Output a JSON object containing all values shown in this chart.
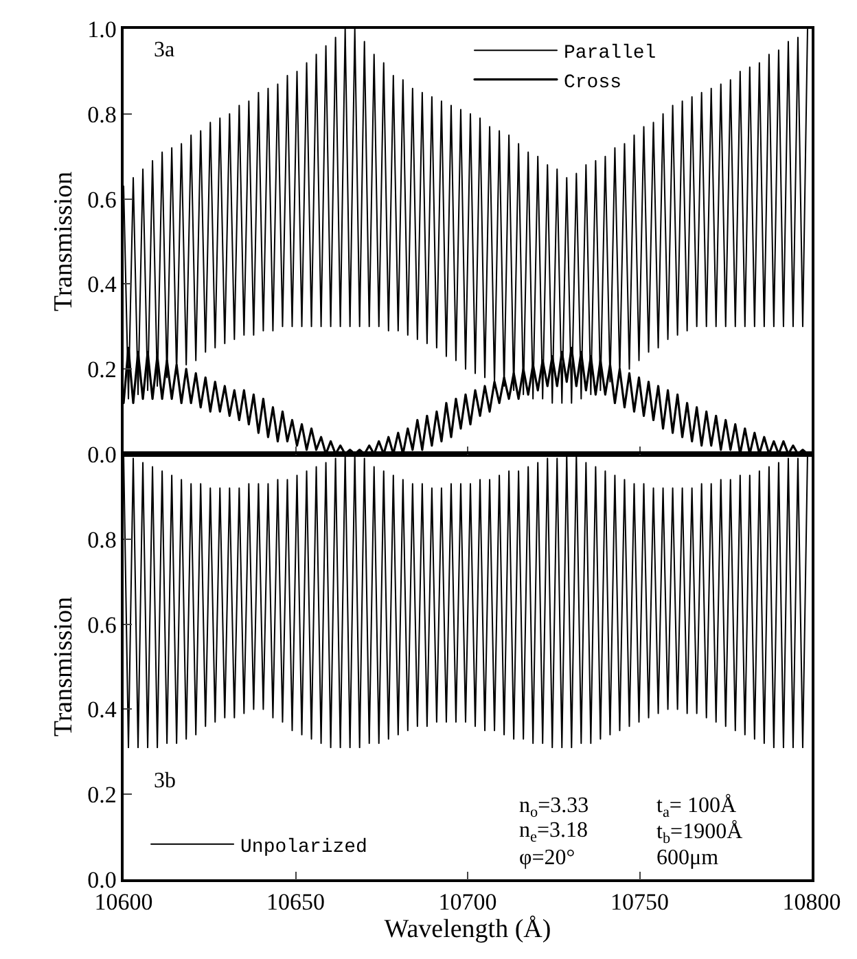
{
  "chart_data": [
    {
      "type": "line",
      "ylabel": "Transmission",
      "tick_labels": "y",
      "legend": "top right",
      "grid": false,
      "xlim": [
        10600,
        10800
      ],
      "ylim": [
        0,
        1
      ],
      "yticks": [
        {
          "value": 0,
          "label": "0.0"
        },
        {
          "value": 0.2,
          "label": "0.2"
        },
        {
          "value": 0.4,
          "label": "0.4"
        },
        {
          "value": 0.6,
          "label": "0.6"
        },
        {
          "value": 0.8,
          "label": "0.8"
        },
        {
          "value": 1,
          "label": "1.0"
        }
      ],
      "annotations": [
        "3a"
      ],
      "x": [
        10600.0,
        10601.4,
        10602.8,
        10604.2,
        10605.6,
        10607.0,
        10608.4,
        10609.8,
        10611.2,
        10612.6,
        10614.0,
        10615.4,
        10616.8,
        10618.2,
        10619.6,
        10621.0,
        10622.4,
        10623.8,
        10625.2,
        10626.6,
        10628.0,
        10629.4,
        10630.8,
        10632.2,
        10633.6,
        10635.0,
        10636.4,
        10637.8,
        10639.2,
        10640.6,
        10642.0,
        10643.4,
        10644.8,
        10646.2,
        10647.6,
        10649.0,
        10650.4,
        10651.8,
        10653.2,
        10654.6,
        10656.0,
        10657.4,
        10658.8,
        10660.2,
        10661.6,
        10663.0,
        10664.4,
        10665.8,
        10667.2,
        10668.6,
        10670.0,
        10671.4,
        10672.8,
        10674.2,
        10675.6,
        10677.0,
        10678.4,
        10679.8,
        10681.2,
        10682.6,
        10684.0,
        10685.4,
        10686.8,
        10688.2,
        10689.6,
        10691.0,
        10692.4,
        10693.8,
        10695.2,
        10696.6,
        10698.0,
        10699.4,
        10700.8,
        10702.2,
        10703.6,
        10705.0,
        10706.4,
        10707.8,
        10709.2,
        10710.6,
        10712.0,
        10713.4,
        10714.8,
        10716.2,
        10717.6,
        10719.0,
        10720.4,
        10721.8,
        10723.2,
        10724.6,
        10726.0,
        10727.4,
        10728.8,
        10730.2,
        10731.6,
        10733.0,
        10734.4,
        10735.8,
        10737.2,
        10738.6,
        10740.0,
        10741.4,
        10742.8,
        10744.2,
        10745.6,
        10747.0,
        10748.4,
        10749.8,
        10751.2,
        10752.6,
        10754.0,
        10755.4,
        10756.8,
        10758.2,
        10759.6,
        10761.0,
        10762.4,
        10763.8,
        10765.2,
        10766.6,
        10768.0,
        10769.4,
        10770.8,
        10772.2,
        10773.6,
        10775.0,
        10776.4,
        10777.8,
        10779.2,
        10780.6,
        10782.0,
        10783.4,
        10784.8,
        10786.2,
        10787.6,
        10789.0,
        10790.4,
        10791.8,
        10793.2,
        10794.6,
        10796.0,
        10797.4,
        10798.8
      ],
      "series": [
        {
          "name": "Parallel",
          "color": "#000000",
          "values": [
            0.63,
            0.13,
            0.65,
            0.14,
            0.67,
            0.15,
            0.69,
            0.16,
            0.71,
            0.18,
            0.72,
            0.19,
            0.73,
            0.21,
            0.75,
            0.22,
            0.76,
            0.24,
            0.78,
            0.25,
            0.79,
            0.26,
            0.8,
            0.27,
            0.82,
            0.28,
            0.83,
            0.28,
            0.85,
            0.29,
            0.86,
            0.29,
            0.87,
            0.3,
            0.89,
            0.3,
            0.9,
            0.3,
            0.92,
            0.3,
            0.94,
            0.3,
            0.96,
            0.3,
            0.98,
            0.3,
            1.0,
            0.3,
            1.0,
            0.3,
            0.97,
            0.3,
            0.94,
            0.3,
            0.92,
            0.29,
            0.89,
            0.29,
            0.88,
            0.28,
            0.86,
            0.27,
            0.85,
            0.26,
            0.84,
            0.25,
            0.83,
            0.23,
            0.82,
            0.22,
            0.81,
            0.2,
            0.8,
            0.19,
            0.79,
            0.18,
            0.77,
            0.17,
            0.76,
            0.16,
            0.75,
            0.15,
            0.73,
            0.14,
            0.71,
            0.13,
            0.7,
            0.13,
            0.68,
            0.12,
            0.67,
            0.12,
            0.65,
            0.12,
            0.66,
            0.13,
            0.68,
            0.14,
            0.69,
            0.15,
            0.7,
            0.17,
            0.72,
            0.19,
            0.73,
            0.2,
            0.75,
            0.22,
            0.77,
            0.24,
            0.78,
            0.25,
            0.8,
            0.27,
            0.82,
            0.28,
            0.83,
            0.29,
            0.84,
            0.3,
            0.85,
            0.3,
            0.86,
            0.3,
            0.87,
            0.3,
            0.88,
            0.3,
            0.9,
            0.3,
            0.91,
            0.3,
            0.92,
            0.3,
            0.94,
            0.3,
            0.95,
            0.3,
            0.97,
            0.3,
            0.98,
            0.3,
            1.0
          ]
        },
        {
          "name": "Cross",
          "color": "#000000",
          "values": [
            0.12,
            0.25,
            0.12,
            0.24,
            0.13,
            0.24,
            0.13,
            0.23,
            0.13,
            0.22,
            0.13,
            0.21,
            0.12,
            0.2,
            0.12,
            0.19,
            0.11,
            0.18,
            0.1,
            0.17,
            0.1,
            0.16,
            0.09,
            0.15,
            0.08,
            0.15,
            0.07,
            0.14,
            0.05,
            0.13,
            0.04,
            0.11,
            0.03,
            0.1,
            0.03,
            0.08,
            0.02,
            0.07,
            0.01,
            0.06,
            0.01,
            0.04,
            0.0,
            0.03,
            0.0,
            0.02,
            0.0,
            0.01,
            0.0,
            0.01,
            0.0,
            0.02,
            0.0,
            0.03,
            0.0,
            0.04,
            0.0,
            0.05,
            0.0,
            0.06,
            0.01,
            0.08,
            0.01,
            0.09,
            0.02,
            0.1,
            0.03,
            0.12,
            0.04,
            0.13,
            0.06,
            0.14,
            0.07,
            0.15,
            0.09,
            0.16,
            0.1,
            0.17,
            0.12,
            0.18,
            0.13,
            0.19,
            0.13,
            0.2,
            0.14,
            0.21,
            0.15,
            0.22,
            0.16,
            0.23,
            0.16,
            0.24,
            0.17,
            0.25,
            0.16,
            0.24,
            0.15,
            0.23,
            0.14,
            0.22,
            0.14,
            0.21,
            0.12,
            0.2,
            0.11,
            0.19,
            0.1,
            0.18,
            0.09,
            0.17,
            0.08,
            0.16,
            0.06,
            0.15,
            0.05,
            0.14,
            0.04,
            0.12,
            0.03,
            0.11,
            0.02,
            0.1,
            0.02,
            0.09,
            0.01,
            0.08,
            0.01,
            0.07,
            0.0,
            0.06,
            0.0,
            0.05,
            0.0,
            0.04,
            0.0,
            0.03,
            0.0,
            0.03,
            0.0,
            0.02,
            0.0,
            0.01,
            0.0
          ]
        }
      ]
    },
    {
      "type": "line",
      "ylabel": "Transmission",
      "xlabel": "Wavelength (Å)",
      "legend": "bottom left",
      "grid": false,
      "xlim": [
        10600,
        10800
      ],
      "ylim": [
        0,
        1
      ],
      "xticks": [
        10600,
        10650,
        10700,
        10750,
        10800
      ],
      "yticks": [
        {
          "value": 0,
          "label": "0.0"
        },
        {
          "value": 0.2,
          "label": "0.2"
        },
        {
          "value": 0.4,
          "label": "0.4"
        },
        {
          "value": 0.6,
          "label": "0.6"
        },
        {
          "value": 0.8,
          "label": "0.8"
        }
      ],
      "annotations": [
        "3b",
        "n$_{o}$=3.33",
        "n$_{e}$=3.18",
        "φ=20°",
        "t$_{a}$= 100Å",
        "t$_{b}$=1900Å",
        "600μm"
      ],
      "x": [
        10600.0,
        10601.4,
        10602.8,
        10604.2,
        10605.6,
        10607.0,
        10608.4,
        10609.8,
        10611.2,
        10612.6,
        10614.0,
        10615.4,
        10616.8,
        10618.2,
        10619.6,
        10621.0,
        10622.4,
        10623.8,
        10625.2,
        10626.6,
        10628.0,
        10629.4,
        10630.8,
        10632.2,
        10633.6,
        10635.0,
        10636.4,
        10637.8,
        10639.2,
        10640.6,
        10642.0,
        10643.4,
        10644.8,
        10646.2,
        10647.6,
        10649.0,
        10650.4,
        10651.8,
        10653.2,
        10654.6,
        10656.0,
        10657.4,
        10658.8,
        10660.2,
        10661.6,
        10663.0,
        10664.4,
        10665.8,
        10667.2,
        10668.6,
        10670.0,
        10671.4,
        10672.8,
        10674.2,
        10675.6,
        10677.0,
        10678.4,
        10679.8,
        10681.2,
        10682.6,
        10684.0,
        10685.4,
        10686.8,
        10688.2,
        10689.6,
        10691.0,
        10692.4,
        10693.8,
        10695.2,
        10696.6,
        10698.0,
        10699.4,
        10700.8,
        10702.2,
        10703.6,
        10705.0,
        10706.4,
        10707.8,
        10709.2,
        10710.6,
        10712.0,
        10713.4,
        10714.8,
        10716.2,
        10717.6,
        10719.0,
        10720.4,
        10721.8,
        10723.2,
        10724.6,
        10726.0,
        10727.4,
        10728.8,
        10730.2,
        10731.6,
        10733.0,
        10734.4,
        10735.8,
        10737.2,
        10738.6,
        10740.0,
        10741.4,
        10742.8,
        10744.2,
        10745.6,
        10747.0,
        10748.4,
        10749.8,
        10751.2,
        10752.6,
        10754.0,
        10755.4,
        10756.8,
        10758.2,
        10759.6,
        10761.0,
        10762.4,
        10763.8,
        10765.2,
        10766.6,
        10768.0,
        10769.4,
        10770.8,
        10772.2,
        10773.6,
        10775.0,
        10776.4,
        10777.8,
        10779.2,
        10780.6,
        10782.0,
        10783.4,
        10784.8,
        10786.2,
        10787.6,
        10789.0,
        10790.4,
        10791.8,
        10793.2,
        10794.6,
        10796.0,
        10797.4,
        10798.8
      ],
      "series": [
        {
          "name": "Unpolarized",
          "color": "#000000",
          "values": [
            1.0,
            0.31,
            0.99,
            0.31,
            0.98,
            0.31,
            0.97,
            0.31,
            0.96,
            0.32,
            0.95,
            0.32,
            0.94,
            0.33,
            0.93,
            0.34,
            0.93,
            0.36,
            0.92,
            0.37,
            0.92,
            0.38,
            0.92,
            0.38,
            0.92,
            0.39,
            0.93,
            0.4,
            0.93,
            0.4,
            0.93,
            0.38,
            0.94,
            0.37,
            0.94,
            0.35,
            0.95,
            0.34,
            0.96,
            0.33,
            0.97,
            0.32,
            0.98,
            0.31,
            0.99,
            0.31,
            1.0,
            0.31,
            1.0,
            0.31,
            0.99,
            0.32,
            0.97,
            0.32,
            0.96,
            0.33,
            0.95,
            0.34,
            0.94,
            0.35,
            0.93,
            0.36,
            0.93,
            0.36,
            0.92,
            0.37,
            0.92,
            0.37,
            0.93,
            0.37,
            0.93,
            0.37,
            0.93,
            0.36,
            0.94,
            0.35,
            0.94,
            0.35,
            0.95,
            0.34,
            0.96,
            0.33,
            0.96,
            0.33,
            0.97,
            0.32,
            0.98,
            0.32,
            0.99,
            0.31,
            0.99,
            0.31,
            1.0,
            0.31,
            1.0,
            0.32,
            0.98,
            0.32,
            0.97,
            0.33,
            0.96,
            0.34,
            0.95,
            0.35,
            0.94,
            0.36,
            0.93,
            0.37,
            0.93,
            0.38,
            0.92,
            0.39,
            0.92,
            0.4,
            0.92,
            0.4,
            0.92,
            0.39,
            0.92,
            0.39,
            0.93,
            0.38,
            0.93,
            0.37,
            0.94,
            0.36,
            0.94,
            0.35,
            0.95,
            0.34,
            0.95,
            0.33,
            0.96,
            0.32,
            0.97,
            0.31,
            0.98,
            0.31,
            0.99,
            0.31,
            0.99,
            0.31,
            1.0
          ]
        }
      ]
    }
  ]
}
